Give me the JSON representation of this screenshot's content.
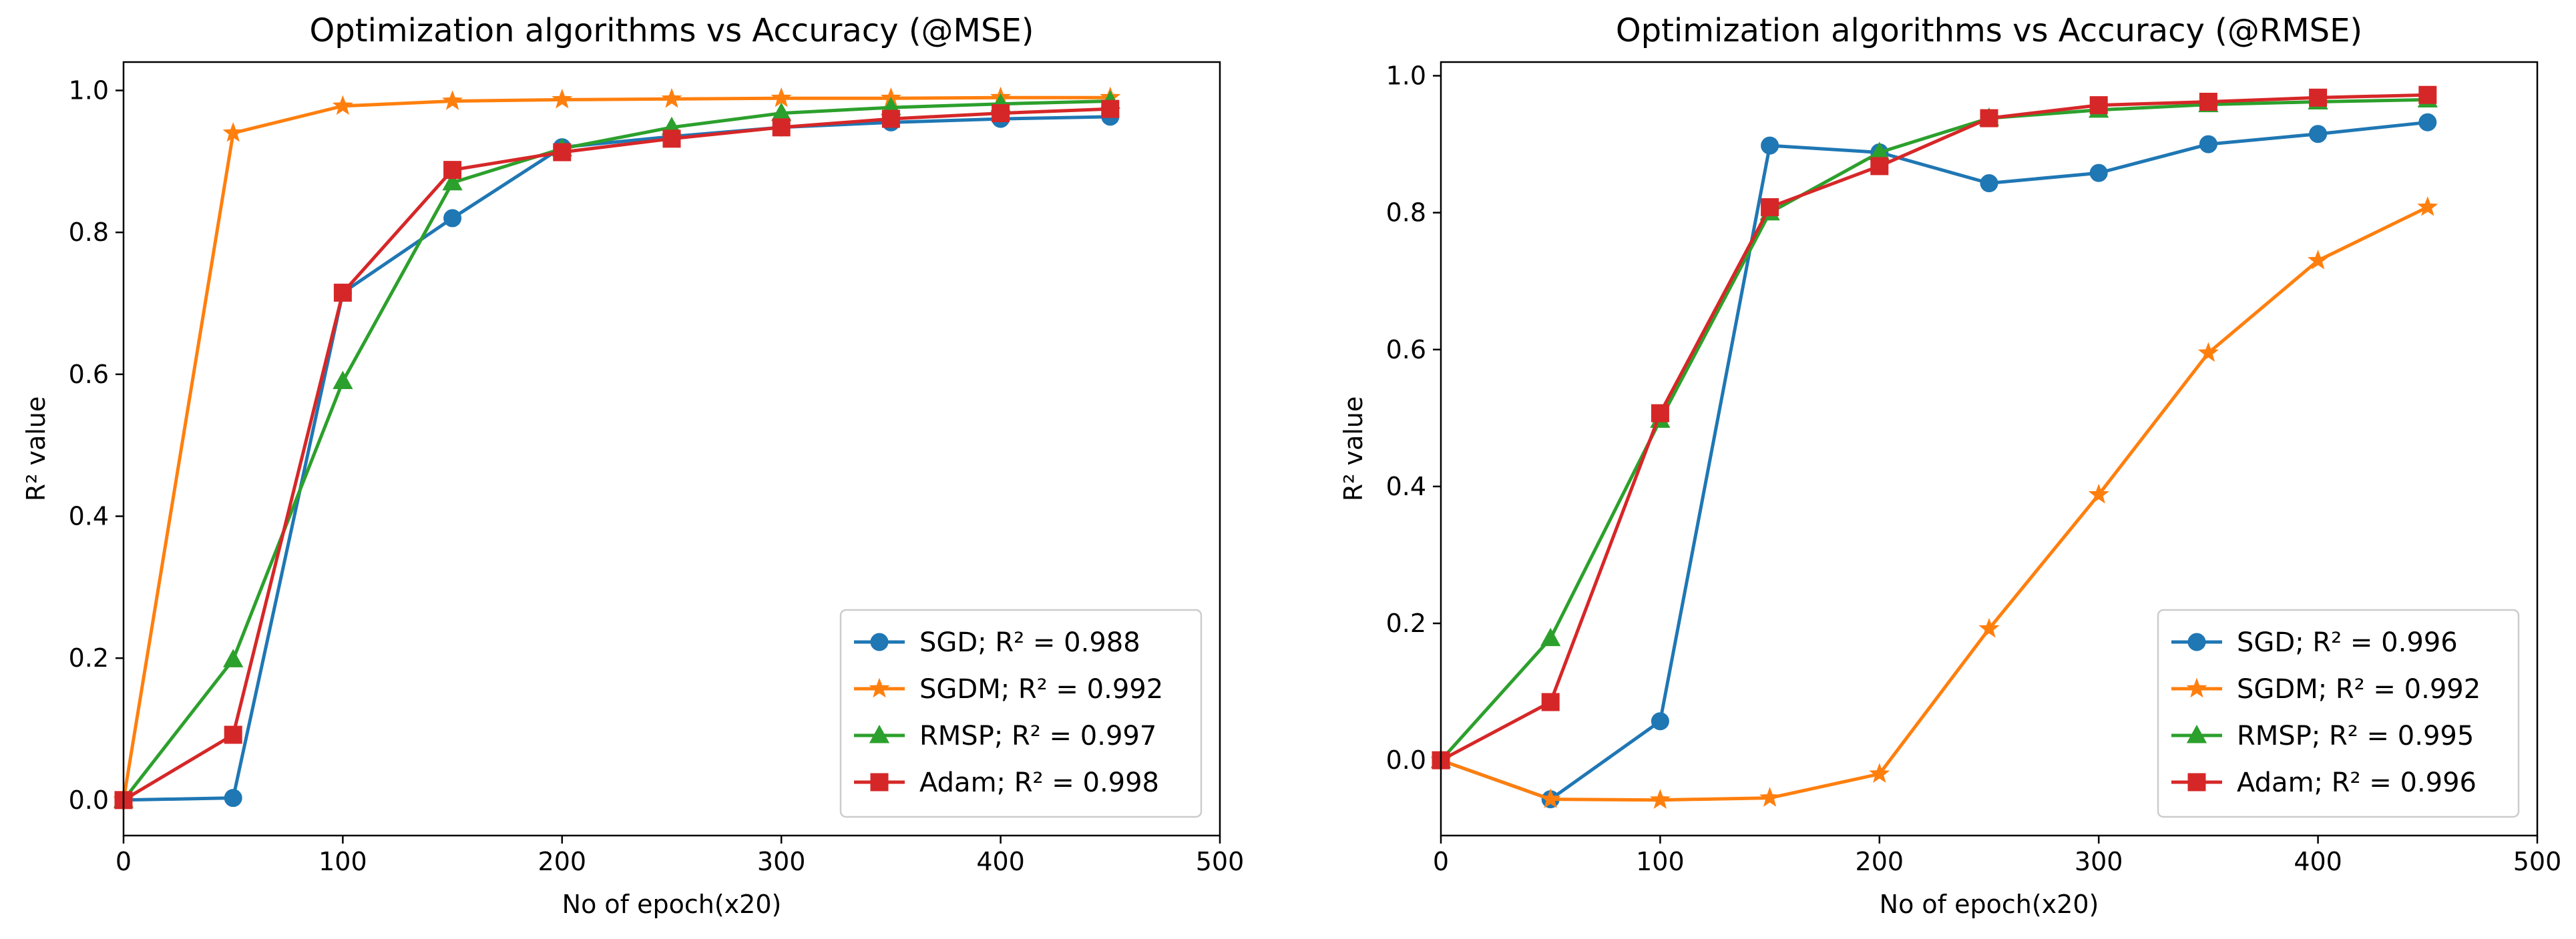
{
  "colors": {
    "SGD": "#1f77b4",
    "SGDM": "#ff7f0e",
    "RMSP": "#2ca02c",
    "Adam": "#d62728"
  },
  "chart_data": [
    {
      "type": "line",
      "title": "Optimization algorithms vs Accuracy (@MSE)",
      "xlabel": "No of epoch(x20)",
      "ylabel": "R² value",
      "xlim": [
        0,
        500
      ],
      "ylim": [
        -0.05,
        1.04
      ],
      "xticks": [
        0,
        100,
        200,
        300,
        400,
        500
      ],
      "yticks": [
        0.0,
        0.2,
        0.4,
        0.6,
        0.8,
        1.0
      ],
      "grid": false,
      "legend_position": "lower-right",
      "series": [
        {
          "name": "SGD",
          "legend": "SGD; R² = 0.988",
          "marker": "circle",
          "x": [
            0,
            50,
            100,
            150,
            200,
            250,
            300,
            350,
            400,
            450
          ],
          "y": [
            0.0,
            0.003,
            0.715,
            0.82,
            0.92,
            0.935,
            0.948,
            0.955,
            0.96,
            0.963
          ]
        },
        {
          "name": "SGDM",
          "legend": "SGDM; R² = 0.992",
          "marker": "star",
          "x": [
            0,
            50,
            100,
            150,
            200,
            250,
            300,
            350,
            400,
            450
          ],
          "y": [
            0.0,
            0.94,
            0.978,
            0.985,
            0.987,
            0.988,
            0.989,
            0.989,
            0.99,
            0.99
          ]
        },
        {
          "name": "RMSP",
          "legend": "RMSP; R² = 0.997",
          "marker": "triangle",
          "x": [
            0,
            50,
            100,
            150,
            200,
            250,
            300,
            350,
            400,
            450
          ],
          "y": [
            0.0,
            0.198,
            0.59,
            0.87,
            0.918,
            0.948,
            0.968,
            0.976,
            0.981,
            0.985
          ]
        },
        {
          "name": "Adam",
          "legend": "Adam; R² = 0.998",
          "marker": "square",
          "x": [
            0,
            50,
            100,
            150,
            200,
            250,
            300,
            350,
            400,
            450
          ],
          "y": [
            0.0,
            0.092,
            0.715,
            0.888,
            0.913,
            0.932,
            0.948,
            0.96,
            0.968,
            0.974
          ]
        }
      ]
    },
    {
      "type": "line",
      "title": "Optimization algorithms vs Accuracy (@RMSE)",
      "xlabel": "No of epoch(x20)",
      "ylabel": "R² value",
      "xlim": [
        0,
        500
      ],
      "ylim": [
        -0.11,
        1.02
      ],
      "xticks": [
        0,
        100,
        200,
        300,
        400,
        500
      ],
      "yticks": [
        0.0,
        0.2,
        0.4,
        0.6,
        0.8,
        1.0
      ],
      "grid": false,
      "legend_position": "lower-right",
      "series": [
        {
          "name": "SGD",
          "legend": "SGD; R² = 0.996",
          "marker": "circle",
          "x": [
            0,
            50,
            100,
            150,
            200,
            250,
            300,
            350,
            400,
            450
          ],
          "y": [
            0.0,
            -0.057,
            0.057,
            0.898,
            0.888,
            0.843,
            0.858,
            0.9,
            0.915,
            0.932
          ]
        },
        {
          "name": "SGDM",
          "legend": "SGDM; R² = 0.992",
          "marker": "star",
          "x": [
            0,
            50,
            100,
            150,
            200,
            250,
            300,
            350,
            400,
            450
          ],
          "y": [
            0.0,
            -0.057,
            -0.058,
            -0.055,
            -0.02,
            0.192,
            0.388,
            0.595,
            0.73,
            0.808
          ]
        },
        {
          "name": "RMSP",
          "legend": "RMSP; R² = 0.995",
          "marker": "triangle",
          "x": [
            0,
            50,
            100,
            150,
            200,
            250,
            300,
            350,
            400,
            450
          ],
          "y": [
            0.0,
            0.178,
            0.497,
            0.8,
            0.888,
            0.938,
            0.95,
            0.958,
            0.962,
            0.965
          ]
        },
        {
          "name": "Adam",
          "legend": "Adam; R² = 0.996",
          "marker": "square",
          "x": [
            0,
            50,
            100,
            150,
            200,
            250,
            300,
            350,
            400,
            450
          ],
          "y": [
            0.0,
            0.085,
            0.507,
            0.808,
            0.868,
            0.938,
            0.957,
            0.962,
            0.968,
            0.972
          ]
        }
      ]
    }
  ]
}
